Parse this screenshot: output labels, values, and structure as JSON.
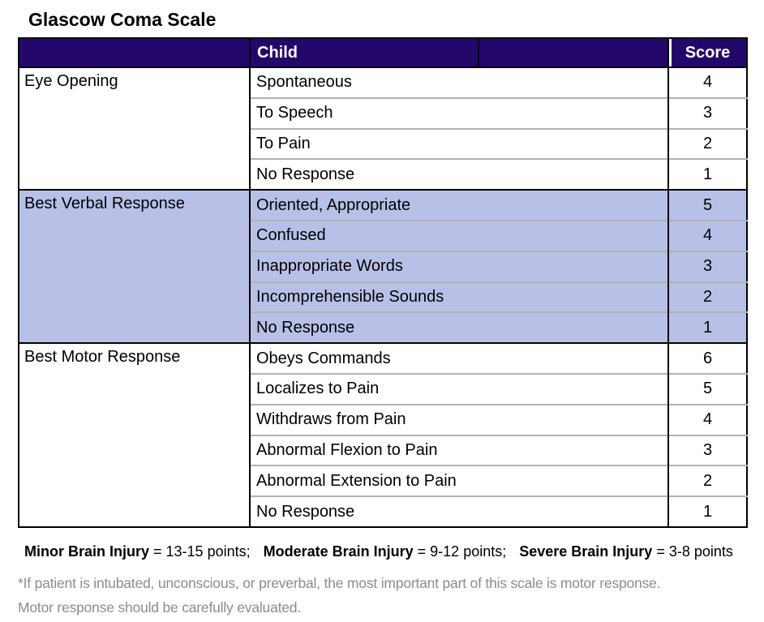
{
  "title": "Glascow Coma Scale",
  "table": {
    "header": {
      "category": "",
      "child": "Child",
      "extra": "",
      "score": "Score"
    },
    "sections": [
      {
        "category": "Eye Opening",
        "highlighted": false,
        "rows": [
          {
            "response": "Spontaneous",
            "score": "4"
          },
          {
            "response": "To Speech",
            "score": "3"
          },
          {
            "response": "To Pain",
            "score": "2"
          },
          {
            "response": "No Response",
            "score": "1"
          }
        ]
      },
      {
        "category": "Best Verbal Response",
        "highlighted": true,
        "rows": [
          {
            "response": "Oriented, Appropriate",
            "score": "5"
          },
          {
            "response": "Confused",
            "score": "4"
          },
          {
            "response": "Inappropriate Words",
            "score": "3"
          },
          {
            "response": "Incomprehensible Sounds",
            "score": "2"
          },
          {
            "response": "No Response",
            "score": "1"
          }
        ]
      },
      {
        "category": "Best Motor Response",
        "highlighted": false,
        "rows": [
          {
            "response": "Obeys Commands",
            "score": "6"
          },
          {
            "response": "Localizes to Pain",
            "score": "5"
          },
          {
            "response": "Withdraws from Pain",
            "score": "4"
          },
          {
            "response": "Abnormal Flexion to Pain",
            "score": "3"
          },
          {
            "response": "Abnormal Extension to Pain",
            "score": "2"
          },
          {
            "response": "No Response",
            "score": "1"
          }
        ]
      }
    ]
  },
  "legend": [
    {
      "label": "Minor Brain Injury",
      "detail": "= 13-15 points;"
    },
    {
      "label": "Moderate Brain Injury",
      "detail": "= 9-12 points;"
    },
    {
      "label": "Severe Brain Injury",
      "detail": "= 3-8 points"
    }
  ],
  "footnote": {
    "line1": "*If patient is intubated, unconscious, or preverbal, the most important part of this scale is motor response.",
    "line2": "Motor response should be carefully evaluated."
  },
  "colors": {
    "header_bg": "#23076B",
    "header_text": "#FFFFFF",
    "highlight_bg": "#B8C0E8",
    "grid_line": "#B1B1B1",
    "section_line": "#000000",
    "footnote_text": "#8C8C8C"
  }
}
